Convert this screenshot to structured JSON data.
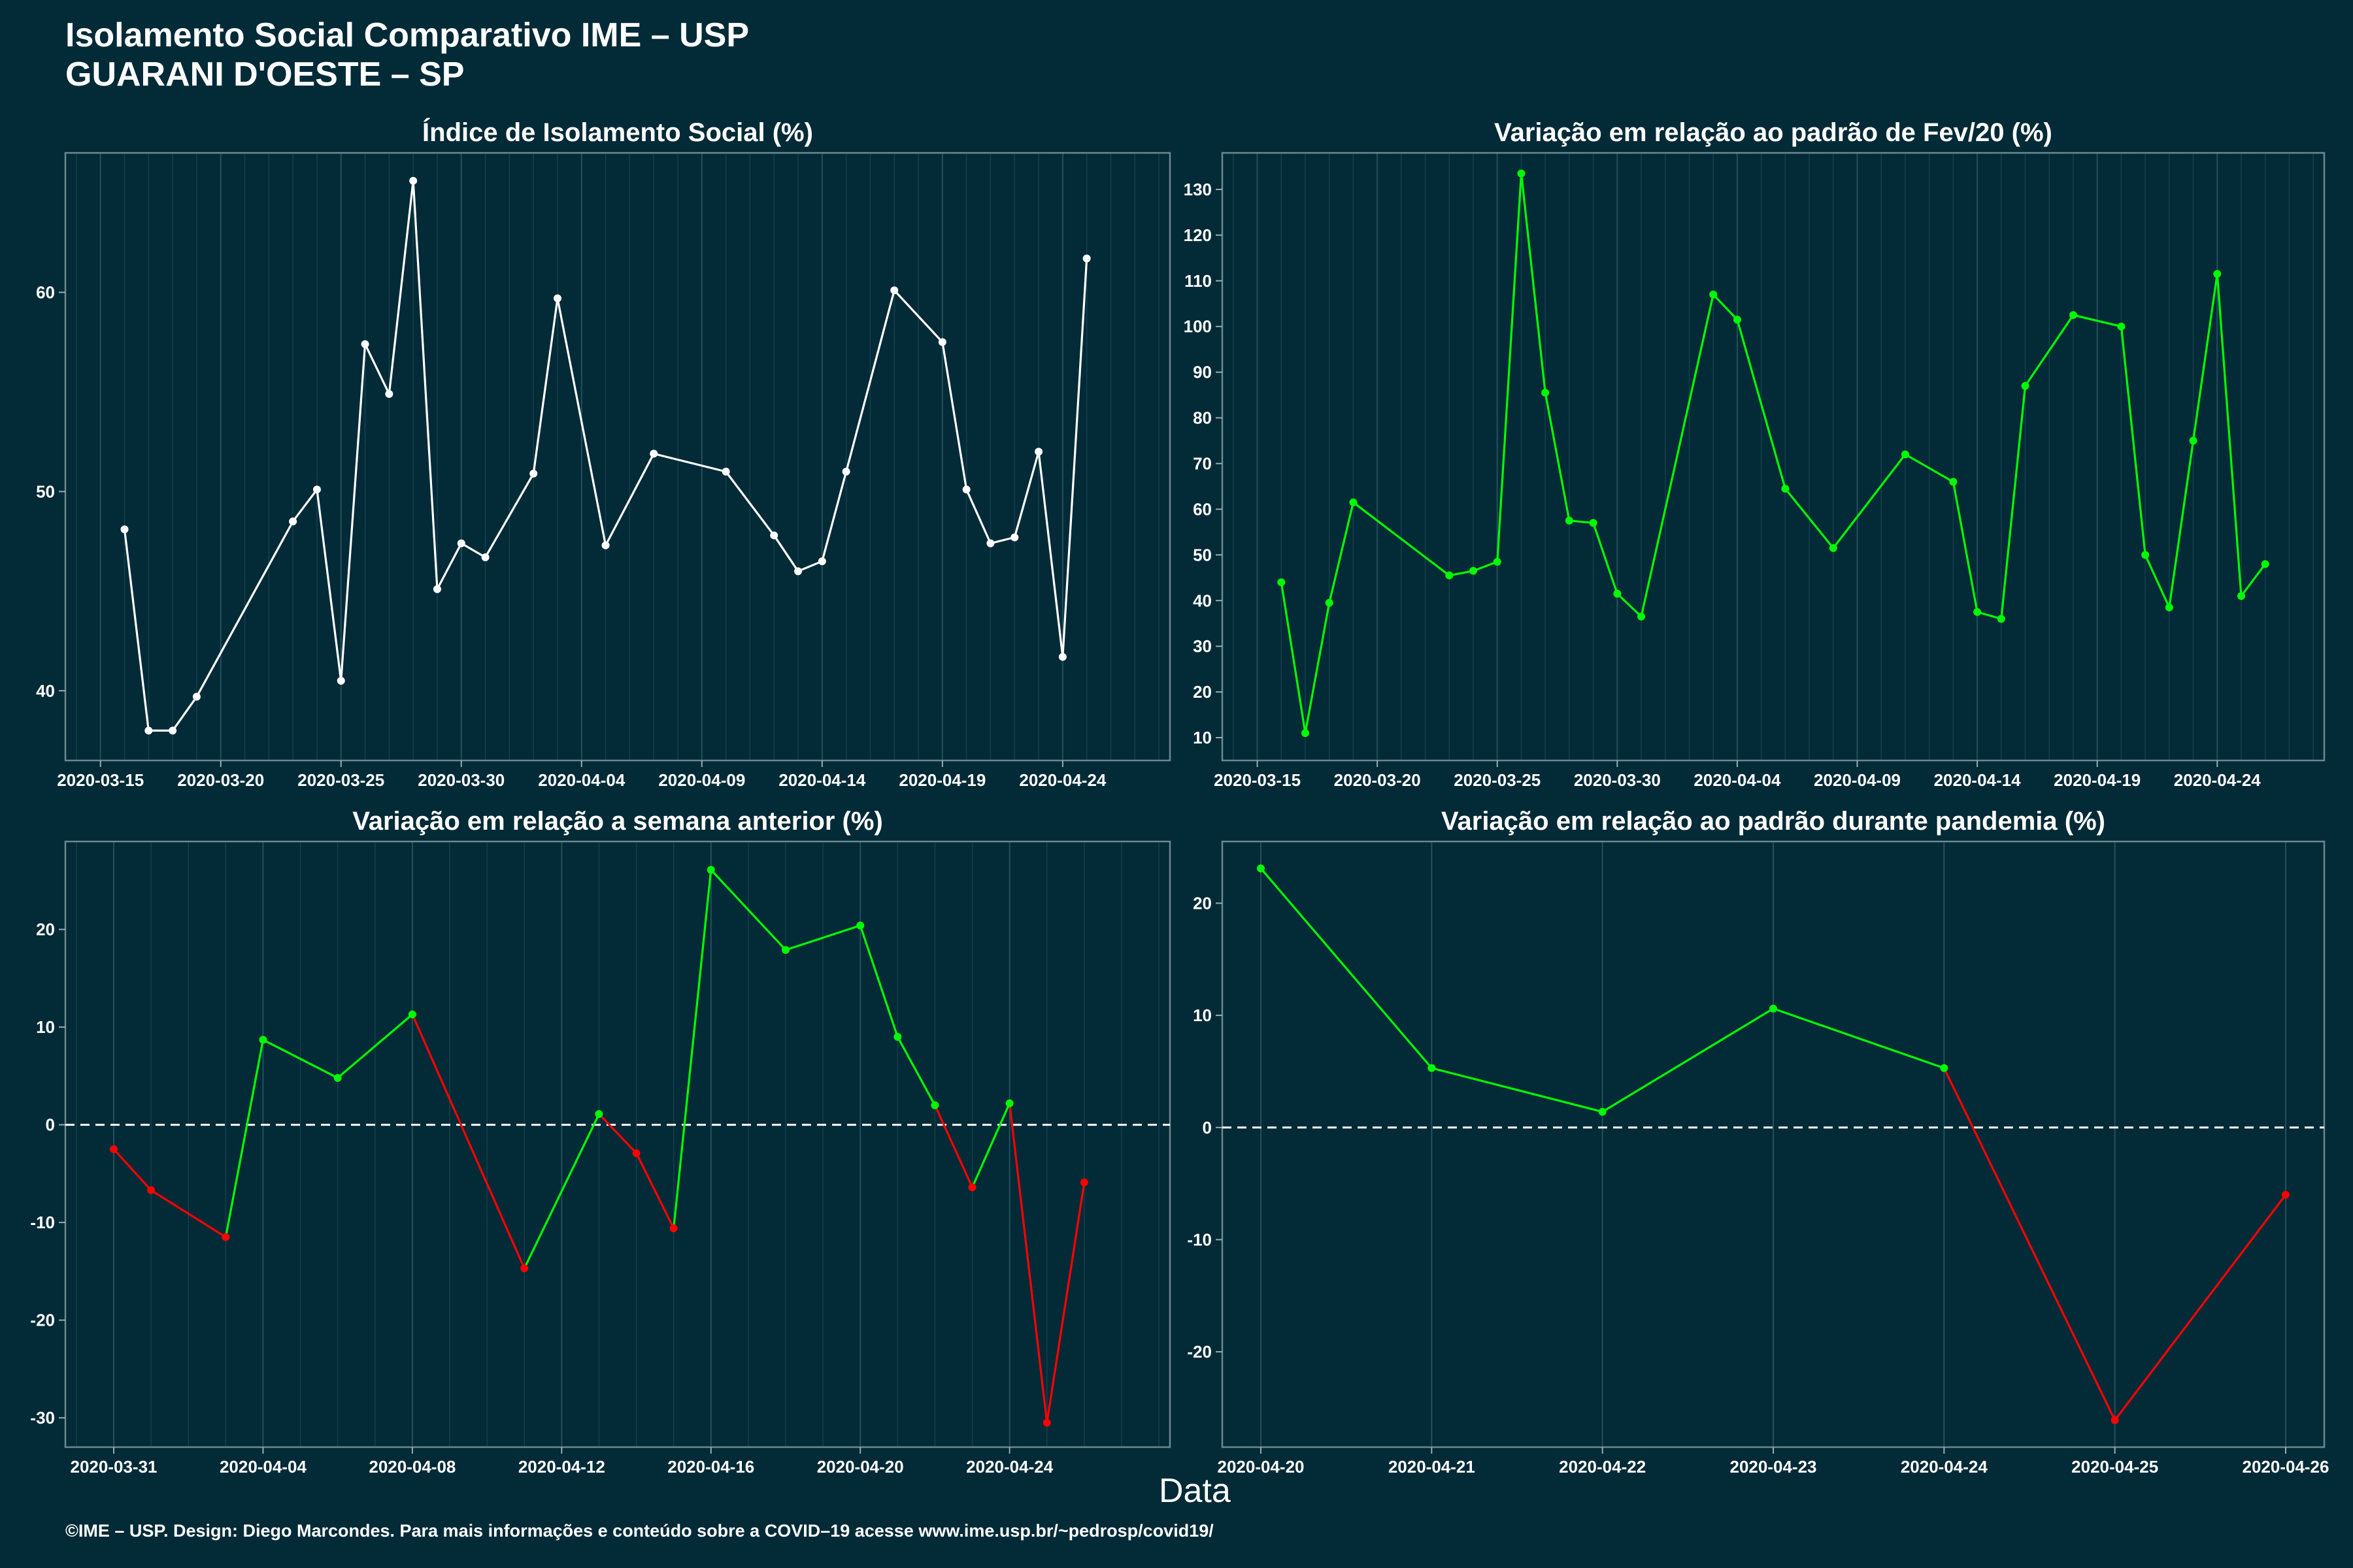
{
  "header": {
    "title_line1": "Isolamento Social Comparativo IME – USP",
    "title_line2": "GUARANI D'OESTE – SP"
  },
  "x_axis_label": "Data",
  "footer": "©IME – USP. Design: Diego Marcondes. Para mais informações e conteúdo sobre a COVID–19 acesse www.ime.usp.br/~pedrosp/covid19/",
  "colors": {
    "background": "#022a37",
    "up": "#00ff00",
    "down": "#ff0000",
    "neutral": "#ffffff"
  },
  "chart_data": [
    {
      "type": "line",
      "title": "Índice de Isolamento Social (%)",
      "x_range": [
        "2020-03-14",
        "2020-04-28"
      ],
      "ylim": [
        36.5,
        67
      ],
      "x_ticks": [
        "2020-03-15",
        "2020-03-20",
        "2020-03-25",
        "2020-03-30",
        "2020-04-04",
        "2020-04-09",
        "2020-04-14",
        "2020-04-19",
        "2020-04-24"
      ],
      "y_ticks": [
        40,
        50,
        60
      ],
      "zero_line": false,
      "points": [
        {
          "x": "2020-03-16",
          "y": 48.1,
          "c": "neutral"
        },
        {
          "x": "2020-03-17",
          "y": 38.0,
          "c": "neutral"
        },
        {
          "x": "2020-03-18",
          "y": 38.0,
          "c": "neutral"
        },
        {
          "x": "2020-03-19",
          "y": 39.7,
          "c": "neutral"
        },
        {
          "x": "2020-03-23",
          "y": 48.5,
          "c": "neutral"
        },
        {
          "x": "2020-03-24",
          "y": 50.1,
          "c": "neutral"
        },
        {
          "x": "2020-03-25",
          "y": 40.5,
          "c": "neutral"
        },
        {
          "x": "2020-03-26",
          "y": 57.4,
          "c": "neutral"
        },
        {
          "x": "2020-03-27",
          "y": 54.9,
          "c": "neutral"
        },
        {
          "x": "2020-03-28",
          "y": 65.6,
          "c": "neutral"
        },
        {
          "x": "2020-03-29",
          "y": 45.1,
          "c": "neutral"
        },
        {
          "x": "2020-03-30",
          "y": 47.4,
          "c": "neutral"
        },
        {
          "x": "2020-03-31",
          "y": 46.7,
          "c": "neutral"
        },
        {
          "x": "2020-04-02",
          "y": 50.9,
          "c": "neutral"
        },
        {
          "x": "2020-04-03",
          "y": 59.7,
          "c": "neutral"
        },
        {
          "x": "2020-04-05",
          "y": 47.3,
          "c": "neutral"
        },
        {
          "x": "2020-04-07",
          "y": 51.9,
          "c": "neutral"
        },
        {
          "x": "2020-04-10",
          "y": 51.0,
          "c": "neutral"
        },
        {
          "x": "2020-04-12",
          "y": 47.8,
          "c": "neutral"
        },
        {
          "x": "2020-04-13",
          "y": 46.0,
          "c": "neutral"
        },
        {
          "x": "2020-04-14",
          "y": 46.5,
          "c": "neutral"
        },
        {
          "x": "2020-04-15",
          "y": 51.0,
          "c": "neutral"
        },
        {
          "x": "2020-04-17",
          "y": 60.1,
          "c": "neutral"
        },
        {
          "x": "2020-04-19",
          "y": 57.5,
          "c": "neutral"
        },
        {
          "x": "2020-04-20",
          "y": 50.1,
          "c": "neutral"
        },
        {
          "x": "2020-04-21",
          "y": 47.4,
          "c": "neutral"
        },
        {
          "x": "2020-04-22",
          "y": 47.7,
          "c": "neutral"
        },
        {
          "x": "2020-04-23",
          "y": 52.0,
          "c": "neutral"
        },
        {
          "x": "2020-04-24",
          "y": 41.7,
          "c": "neutral"
        },
        {
          "x": "2020-04-25",
          "y": 61.7,
          "c": "neutral"
        }
      ]
    },
    {
      "type": "line",
      "title": "Variação em relação ao padrão de Fev/20 (%)",
      "x_range": [
        "2020-03-14",
        "2020-04-28"
      ],
      "ylim": [
        5,
        138
      ],
      "x_ticks": [
        "2020-03-15",
        "2020-03-20",
        "2020-03-25",
        "2020-03-30",
        "2020-04-04",
        "2020-04-09",
        "2020-04-14",
        "2020-04-19",
        "2020-04-24"
      ],
      "y_ticks": [
        10,
        20,
        30,
        40,
        50,
        60,
        70,
        80,
        90,
        100,
        110,
        120,
        130
      ],
      "zero_line": false,
      "points": [
        {
          "x": "2020-03-16",
          "y": 44,
          "c": "up"
        },
        {
          "x": "2020-03-17",
          "y": 11,
          "c": "up"
        },
        {
          "x": "2020-03-18",
          "y": 39.5,
          "c": "up"
        },
        {
          "x": "2020-03-19",
          "y": 61.5,
          "c": "up"
        },
        {
          "x": "2020-03-23",
          "y": 45.5,
          "c": "up"
        },
        {
          "x": "2020-03-24",
          "y": 46.5,
          "c": "up"
        },
        {
          "x": "2020-03-25",
          "y": 48.5,
          "c": "up"
        },
        {
          "x": "2020-03-26",
          "y": 133.5,
          "c": "up"
        },
        {
          "x": "2020-03-27",
          "y": 85.5,
          "c": "up"
        },
        {
          "x": "2020-03-28",
          "y": 57.5,
          "c": "up"
        },
        {
          "x": "2020-03-29",
          "y": 57,
          "c": "up"
        },
        {
          "x": "2020-03-30",
          "y": 41.5,
          "c": "up"
        },
        {
          "x": "2020-03-31",
          "y": 36.5,
          "c": "up"
        },
        {
          "x": "2020-04-03",
          "y": 107,
          "c": "up"
        },
        {
          "x": "2020-04-04",
          "y": 101.5,
          "c": "up"
        },
        {
          "x": "2020-04-06",
          "y": 64.5,
          "c": "up"
        },
        {
          "x": "2020-04-08",
          "y": 51.5,
          "c": "up"
        },
        {
          "x": "2020-04-11",
          "y": 72,
          "c": "up"
        },
        {
          "x": "2020-04-13",
          "y": 66,
          "c": "up"
        },
        {
          "x": "2020-04-14",
          "y": 37.5,
          "c": "up"
        },
        {
          "x": "2020-04-15",
          "y": 36,
          "c": "up"
        },
        {
          "x": "2020-04-16",
          "y": 87,
          "c": "up"
        },
        {
          "x": "2020-04-18",
          "y": 102.5,
          "c": "up"
        },
        {
          "x": "2020-04-20",
          "y": 100,
          "c": "up"
        },
        {
          "x": "2020-04-21",
          "y": 50,
          "c": "up"
        },
        {
          "x": "2020-04-22",
          "y": 38.5,
          "c": "up"
        },
        {
          "x": "2020-04-23",
          "y": 75,
          "c": "up"
        },
        {
          "x": "2020-04-24",
          "y": 111.5,
          "c": "up"
        },
        {
          "x": "2020-04-25",
          "y": 41,
          "c": "up"
        },
        {
          "x": "2020-04-26",
          "y": 48,
          "c": "up"
        }
      ]
    },
    {
      "type": "line",
      "title": "Variação em relação a semana anterior (%)",
      "x_range": [
        "2020-03-30",
        "2020-04-28"
      ],
      "ylim": [
        -33,
        29
      ],
      "x_ticks": [
        "2020-03-31",
        "2020-04-04",
        "2020-04-08",
        "2020-04-12",
        "2020-04-16",
        "2020-04-20",
        "2020-04-24"
      ],
      "y_ticks": [
        -30,
        -20,
        -10,
        0,
        10,
        20
      ],
      "zero_line": true,
      "points": [
        {
          "x": "2020-03-31",
          "y": -2.5,
          "c": "down"
        },
        {
          "x": "2020-04-01",
          "y": -6.7,
          "c": "down"
        },
        {
          "x": "2020-04-03",
          "y": -11.5,
          "c": "down"
        },
        {
          "x": "2020-04-04",
          "y": 8.7,
          "c": "up"
        },
        {
          "x": "2020-04-06",
          "y": 4.8,
          "c": "up"
        },
        {
          "x": "2020-04-08",
          "y": 11.3,
          "c": "up"
        },
        {
          "x": "2020-04-11",
          "y": -14.7,
          "c": "down"
        },
        {
          "x": "2020-04-13",
          "y": 1.1,
          "c": "up"
        },
        {
          "x": "2020-04-14",
          "y": -2.9,
          "c": "down"
        },
        {
          "x": "2020-04-15",
          "y": -10.6,
          "c": "down"
        },
        {
          "x": "2020-04-16",
          "y": 26.1,
          "c": "up"
        },
        {
          "x": "2020-04-18",
          "y": 17.9,
          "c": "up"
        },
        {
          "x": "2020-04-20",
          "y": 20.4,
          "c": "up"
        },
        {
          "x": "2020-04-21",
          "y": 9.0,
          "c": "up"
        },
        {
          "x": "2020-04-22",
          "y": 2.0,
          "c": "up"
        },
        {
          "x": "2020-04-23",
          "y": -6.4,
          "c": "down"
        },
        {
          "x": "2020-04-24",
          "y": 2.2,
          "c": "up"
        },
        {
          "x": "2020-04-25",
          "y": -30.5,
          "c": "down"
        },
        {
          "x": "2020-04-26",
          "y": -5.9,
          "c": "down"
        }
      ]
    },
    {
      "type": "line",
      "title": "Variação em relação ao padrão durante pandemia (%)",
      "x_range": [
        "2020-04-20",
        "2020-04-26"
      ],
      "ylim": [
        -28.5,
        25.5
      ],
      "x_ticks": [
        "2020-04-20",
        "2020-04-21",
        "2020-04-22",
        "2020-04-23",
        "2020-04-24",
        "2020-04-25",
        "2020-04-26"
      ],
      "y_ticks": [
        -20,
        -10,
        0,
        10,
        20
      ],
      "zero_line": true,
      "points": [
        {
          "x": "2020-04-20",
          "y": 23.1,
          "c": "up"
        },
        {
          "x": "2020-04-21",
          "y": 5.3,
          "c": "up"
        },
        {
          "x": "2020-04-22",
          "y": 1.4,
          "c": "up"
        },
        {
          "x": "2020-04-23",
          "y": 10.6,
          "c": "up"
        },
        {
          "x": "2020-04-24",
          "y": 5.3,
          "c": "up"
        },
        {
          "x": "2020-04-25",
          "y": -26.1,
          "c": "down"
        },
        {
          "x": "2020-04-26",
          "y": -6.0,
          "c": "down"
        }
      ]
    }
  ]
}
